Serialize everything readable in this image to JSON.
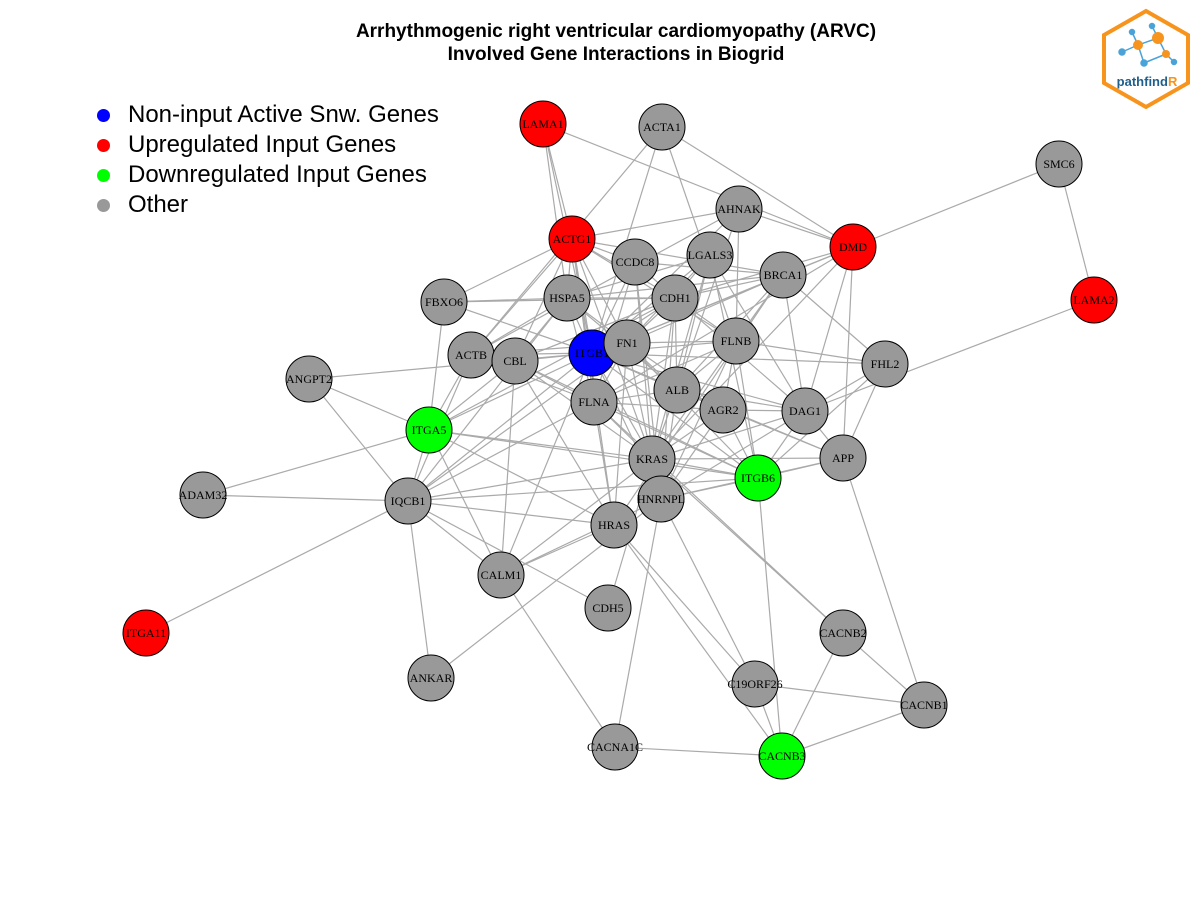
{
  "title": {
    "line1": "Arrhythmogenic right ventricular cardiomyopathy (ARVC)",
    "line2": "Involved Gene Interactions in Biogrid"
  },
  "legend": [
    {
      "label": "Non-input Active Snw. Genes",
      "color": "#0000ff"
    },
    {
      "label": "Upregulated Input Genes",
      "color": "#ff0000"
    },
    {
      "label": "Downregulated Input Genes",
      "color": "#00ff00"
    },
    {
      "label": "Other",
      "color": "#999999"
    }
  ],
  "logo": {
    "text_main": "pathfind",
    "text_accent": "R",
    "accent_color": "#f7941d",
    "text_color": "#1f5f8b"
  },
  "colors": {
    "active": "#0000ff",
    "up": "#ff0000",
    "down": "#00ff00",
    "other": "#999999",
    "edge": "#aaaaaa"
  },
  "nodes": [
    {
      "id": "LAMA1",
      "group": "up"
    },
    {
      "id": "ACTA1",
      "group": "other"
    },
    {
      "id": "SMC6",
      "group": "other"
    },
    {
      "id": "AHNAK",
      "group": "other"
    },
    {
      "id": "ACTG1",
      "group": "up"
    },
    {
      "id": "DMD",
      "group": "up"
    },
    {
      "id": "CCDC8",
      "group": "other"
    },
    {
      "id": "LGALS3",
      "group": "other"
    },
    {
      "id": "BRCA1",
      "group": "other"
    },
    {
      "id": "LAMA2",
      "group": "up"
    },
    {
      "id": "FBXO6",
      "group": "other"
    },
    {
      "id": "HSPA5",
      "group": "other"
    },
    {
      "id": "CDH1",
      "group": "other"
    },
    {
      "id": "ACTB",
      "group": "other"
    },
    {
      "id": "CBL",
      "group": "other"
    },
    {
      "id": "ITGB1",
      "group": "active"
    },
    {
      "id": "FN1",
      "group": "other"
    },
    {
      "id": "FLNB",
      "group": "other"
    },
    {
      "id": "FHL2",
      "group": "other"
    },
    {
      "id": "ANGPT2",
      "group": "other"
    },
    {
      "id": "ALB",
      "group": "other"
    },
    {
      "id": "FLNA",
      "group": "other"
    },
    {
      "id": "AGR2",
      "group": "other"
    },
    {
      "id": "DAG1",
      "group": "other"
    },
    {
      "id": "ITGA5",
      "group": "down"
    },
    {
      "id": "APP",
      "group": "other"
    },
    {
      "id": "KRAS",
      "group": "other"
    },
    {
      "id": "ITGB6",
      "group": "down"
    },
    {
      "id": "ADAM32",
      "group": "other"
    },
    {
      "id": "IQCB1",
      "group": "other"
    },
    {
      "id": "HNRNPL",
      "group": "other"
    },
    {
      "id": "HRAS",
      "group": "other"
    },
    {
      "id": "CALM1",
      "group": "other"
    },
    {
      "id": "CDH5",
      "group": "other"
    },
    {
      "id": "CACNB2",
      "group": "other"
    },
    {
      "id": "ITGA11",
      "group": "up"
    },
    {
      "id": "ANKAR",
      "group": "other"
    },
    {
      "id": "C19ORF26",
      "group": "other"
    },
    {
      "id": "CACNB1",
      "group": "other"
    },
    {
      "id": "CACNA1C",
      "group": "other"
    },
    {
      "id": "CACNB3",
      "group": "down"
    }
  ],
  "edges": [
    [
      "LAMA1",
      "ACTG1"
    ],
    [
      "LAMA1",
      "DMD"
    ],
    [
      "LAMA1",
      "HSPA5"
    ],
    [
      "LAMA1",
      "ITGB1"
    ],
    [
      "ACTA1",
      "DMD"
    ],
    [
      "ACTA1",
      "ACTB"
    ],
    [
      "ACTA1",
      "ITGB1"
    ],
    [
      "ACTA1",
      "FLNB"
    ],
    [
      "SMC6",
      "DMD"
    ],
    [
      "SMC6",
      "LAMA2"
    ],
    [
      "AHNAK",
      "ACTG1"
    ],
    [
      "AHNAK",
      "DMD"
    ],
    [
      "AHNAK",
      "FLNB"
    ],
    [
      "AHNAK",
      "ITGB1"
    ],
    [
      "AHNAK",
      "ACTB"
    ],
    [
      "AHNAK",
      "ALB"
    ],
    [
      "ACTG1",
      "CCDC8"
    ],
    [
      "ACTG1",
      "HSPA5"
    ],
    [
      "ACTG1",
      "CDH1"
    ],
    [
      "ACTG1",
      "FN1"
    ],
    [
      "ACTG1",
      "FLNB"
    ],
    [
      "ACTG1",
      "ITGB1"
    ],
    [
      "ACTG1",
      "ACTB"
    ],
    [
      "ACTG1",
      "BRCA1"
    ],
    [
      "ACTG1",
      "FBXO6"
    ],
    [
      "ACTG1",
      "CBL"
    ],
    [
      "ACTG1",
      "FLNA"
    ],
    [
      "ACTG1",
      "HRAS"
    ],
    [
      "ACTG1",
      "KRAS"
    ],
    [
      "DMD",
      "DAG1"
    ],
    [
      "DMD",
      "APP"
    ],
    [
      "DMD",
      "BRCA1"
    ],
    [
      "DMD",
      "ITGB1"
    ],
    [
      "DMD",
      "FLNA"
    ],
    [
      "DMD",
      "CDH1"
    ],
    [
      "DMD",
      "KRAS"
    ],
    [
      "CCDC8",
      "ITGB1"
    ],
    [
      "CCDC8",
      "KRAS"
    ],
    [
      "CCDC8",
      "CDH1"
    ],
    [
      "CCDC8",
      "FLNA"
    ],
    [
      "CCDC8",
      "BRCA1"
    ],
    [
      "CCDC8",
      "HNRNPL"
    ],
    [
      "LGALS3",
      "ITGB1"
    ],
    [
      "LGALS3",
      "CDH1"
    ],
    [
      "LGALS3",
      "FN1"
    ],
    [
      "LGALS3",
      "ALB"
    ],
    [
      "LGALS3",
      "KRAS"
    ],
    [
      "LGALS3",
      "HSPA5"
    ],
    [
      "LGALS3",
      "ITGB6"
    ],
    [
      "LGALS3",
      "DAG1"
    ],
    [
      "BRCA1",
      "ITGB1"
    ],
    [
      "BRCA1",
      "DAG1"
    ],
    [
      "BRCA1",
      "FLNB"
    ],
    [
      "BRCA1",
      "CDH1"
    ],
    [
      "BRCA1",
      "ALB"
    ],
    [
      "BRCA1",
      "FHL2"
    ],
    [
      "BRCA1",
      "HRAS"
    ],
    [
      "BRCA1",
      "FN1"
    ],
    [
      "BRCA1",
      "HSPA5"
    ],
    [
      "LAMA2",
      "DAG1"
    ],
    [
      "FBXO6",
      "HSPA5"
    ],
    [
      "FBXO6",
      "ITGA5"
    ],
    [
      "FBXO6",
      "CDH1"
    ],
    [
      "FBXO6",
      "ITGB1"
    ],
    [
      "HSPA5",
      "ITGB1"
    ],
    [
      "HSPA5",
      "ACTB"
    ],
    [
      "HSPA5",
      "CBL"
    ],
    [
      "HSPA5",
      "FN1"
    ],
    [
      "HSPA5",
      "CDH1"
    ],
    [
      "HSPA5",
      "ALB"
    ],
    [
      "HSPA5",
      "FLNA"
    ],
    [
      "HSPA5",
      "IQCB1"
    ],
    [
      "CDH1",
      "ITGB1"
    ],
    [
      "CDH1",
      "FN1"
    ],
    [
      "CDH1",
      "FLNB"
    ],
    [
      "CDH1",
      "ALB"
    ],
    [
      "CDH1",
      "KRAS"
    ],
    [
      "CDH1",
      "ITGA5"
    ],
    [
      "CDH1",
      "CBL"
    ],
    [
      "CDH1",
      "DAG1"
    ],
    [
      "CDH1",
      "HNRNPL"
    ],
    [
      "ACTB",
      "ITGB1"
    ],
    [
      "ACTB",
      "CBL"
    ],
    [
      "ACTB",
      "ITGA5"
    ],
    [
      "ACTB",
      "FN1"
    ],
    [
      "ACTB",
      "FLNA"
    ],
    [
      "ACTB",
      "IQCB1"
    ],
    [
      "CBL",
      "ITGB1"
    ],
    [
      "CBL",
      "FLNA"
    ],
    [
      "CBL",
      "KRAS"
    ],
    [
      "CBL",
      "ITGA5"
    ],
    [
      "CBL",
      "CALM1"
    ],
    [
      "CBL",
      "HRAS"
    ],
    [
      "CBL",
      "ITGB6"
    ],
    [
      "CBL",
      "CDH1"
    ],
    [
      "ITGB1",
      "FN1"
    ],
    [
      "ITGB1",
      "FLNB"
    ],
    [
      "ITGB1",
      "FLNA"
    ],
    [
      "ITGB1",
      "ITGA5"
    ],
    [
      "ITGB1",
      "KRAS"
    ],
    [
      "ITGB1",
      "DAG1"
    ],
    [
      "ITGB1",
      "ITGB6"
    ],
    [
      "ITGB1",
      "AGR2"
    ],
    [
      "ITGB1",
      "ALB"
    ],
    [
      "ITGB1",
      "APP"
    ],
    [
      "ITGB1",
      "IQCB1"
    ],
    [
      "ITGB1",
      "CALM1"
    ],
    [
      "ITGB1",
      "HNRNPL"
    ],
    [
      "ITGB1",
      "FHL2"
    ],
    [
      "FN1",
      "FLNA"
    ],
    [
      "FN1",
      "ALB"
    ],
    [
      "FN1",
      "KRAS"
    ],
    [
      "FN1",
      "ITGB6"
    ],
    [
      "FN1",
      "AGR2"
    ],
    [
      "FN1",
      "HRAS"
    ],
    [
      "FN1",
      "IQCB1"
    ],
    [
      "FN1",
      "FLNB"
    ],
    [
      "FLNB",
      "FHL2"
    ],
    [
      "FLNB",
      "ALB"
    ],
    [
      "FLNB",
      "KRAS"
    ],
    [
      "FLNB",
      "ITGB6"
    ],
    [
      "FLNB",
      "FLNA"
    ],
    [
      "FLNB",
      "AGR2"
    ],
    [
      "FLNB",
      "HNRNPL"
    ],
    [
      "FHL2",
      "DAG1"
    ],
    [
      "FHL2",
      "APP"
    ],
    [
      "FHL2",
      "ITGB6"
    ],
    [
      "ANGPT2",
      "ITGA5"
    ],
    [
      "ANGPT2",
      "IQCB1"
    ],
    [
      "ANGPT2",
      "ITGB1"
    ],
    [
      "ALB",
      "FLNA"
    ],
    [
      "ALB",
      "DAG1"
    ],
    [
      "ALB",
      "APP"
    ],
    [
      "ALB",
      "KRAS"
    ],
    [
      "ALB",
      "HNRNPL"
    ],
    [
      "ALB",
      "AGR2"
    ],
    [
      "FLNA",
      "KRAS"
    ],
    [
      "FLNA",
      "AGR2"
    ],
    [
      "FLNA",
      "ITGB6"
    ],
    [
      "FLNA",
      "HRAS"
    ],
    [
      "FLNA",
      "IQCB1"
    ],
    [
      "FLNA",
      "CACNB2"
    ],
    [
      "AGR2",
      "DAG1"
    ],
    [
      "AGR2",
      "KRAS"
    ],
    [
      "AGR2",
      "ITGB6"
    ],
    [
      "AGR2",
      "HNRNPL"
    ],
    [
      "DAG1",
      "APP"
    ],
    [
      "DAG1",
      "KRAS"
    ],
    [
      "DAG1",
      "HNRNPL"
    ],
    [
      "DAG1",
      "ITGB6"
    ],
    [
      "ITGA5",
      "IQCB1"
    ],
    [
      "ITGA5",
      "KRAS"
    ],
    [
      "ITGA5",
      "ADAM32"
    ],
    [
      "ITGA5",
      "HRAS"
    ],
    [
      "ITGA5",
      "ITGB6"
    ],
    [
      "ITGA5",
      "CALM1"
    ],
    [
      "APP",
      "CACNB1"
    ],
    [
      "APP",
      "KRAS"
    ],
    [
      "APP",
      "HNRNPL"
    ],
    [
      "APP",
      "ITGB6"
    ],
    [
      "KRAS",
      "HNRNPL"
    ],
    [
      "KRAS",
      "ITGB6"
    ],
    [
      "KRAS",
      "CACNB2"
    ],
    [
      "KRAS",
      "CDH5"
    ],
    [
      "KRAS",
      "CALM1"
    ],
    [
      "KRAS",
      "IQCB1"
    ],
    [
      "ITGB6",
      "CACNB3"
    ],
    [
      "ITGB6",
      "HNRNPL"
    ],
    [
      "ITGB6",
      "IQCB1"
    ],
    [
      "ADAM32",
      "IQCB1"
    ],
    [
      "IQCB1",
      "ITGA11"
    ],
    [
      "IQCB1",
      "ANKAR"
    ],
    [
      "IQCB1",
      "CALM1"
    ],
    [
      "IQCB1",
      "CDH5"
    ],
    [
      "IQCB1",
      "HRAS"
    ],
    [
      "HNRNPL",
      "C19ORF26"
    ],
    [
      "HNRNPL",
      "CACNA1C"
    ],
    [
      "HNRNPL",
      "ANKAR"
    ],
    [
      "HRAS",
      "CACNB3"
    ],
    [
      "HRAS",
      "CALM1"
    ],
    [
      "HRAS",
      "C19ORF26"
    ],
    [
      "CALM1",
      "CACNA1C"
    ],
    [
      "CALM1",
      "HNRNPL"
    ],
    [
      "CACNB2",
      "CACNB1"
    ],
    [
      "CACNB2",
      "CACNB3"
    ],
    [
      "C19ORF26",
      "CACNB1"
    ],
    [
      "C19ORF26",
      "CACNB3"
    ],
    [
      "CACNB1",
      "CACNB3"
    ],
    [
      "CACNA1C",
      "CACNB3"
    ]
  ]
}
